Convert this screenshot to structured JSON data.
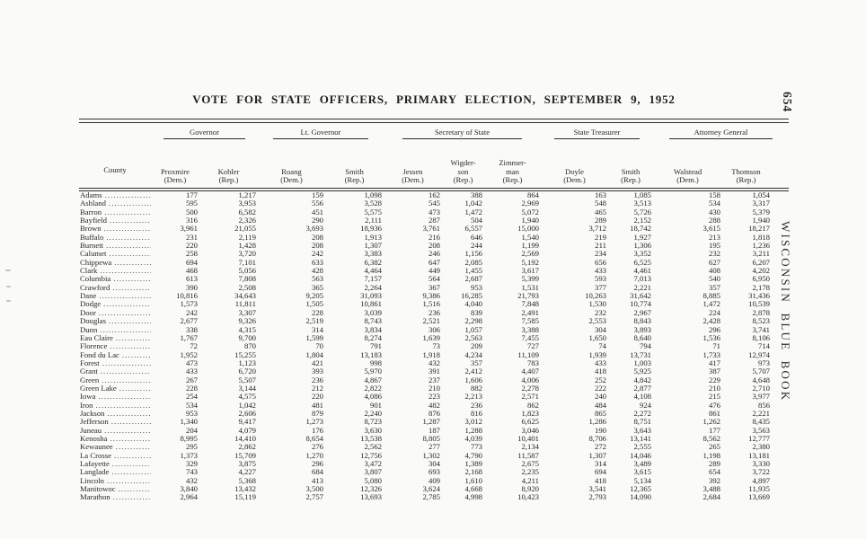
{
  "page": {
    "title": "VOTE FOR STATE OFFICERS, PRIMARY ELECTION, SEPTEMBER 9, 1952",
    "page_number": "654",
    "side_text": "WISCONSIN BLUE BOOK"
  },
  "table": {
    "county_header": "County",
    "groups": [
      {
        "label": "Governor",
        "span": 2
      },
      {
        "label": "Lt. Governor",
        "span": 2
      },
      {
        "label": "Secretary of State",
        "span": 3
      },
      {
        "label": "State Treasurer",
        "span": 2
      },
      {
        "label": "Attorney General",
        "span": 2
      }
    ],
    "columns": [
      {
        "name_lines": [
          "Proxmire"
        ],
        "party": "(Dem.)"
      },
      {
        "name_lines": [
          "Kohler"
        ],
        "party": "(Rep.)"
      },
      {
        "name_lines": [
          "Roang"
        ],
        "party": "(Dem.)"
      },
      {
        "name_lines": [
          "Smith"
        ],
        "party": "(Rep.)"
      },
      {
        "name_lines": [
          "Jessen"
        ],
        "party": "(Dem.)"
      },
      {
        "name_lines": [
          "Wigder-",
          "son"
        ],
        "party": "(Rep.)"
      },
      {
        "name_lines": [
          "Zimmer-",
          "man"
        ],
        "party": "(Rep.)"
      },
      {
        "name_lines": [
          "Doyle"
        ],
        "party": "(Dem.)"
      },
      {
        "name_lines": [
          "Smith"
        ],
        "party": "(Rep.)"
      },
      {
        "name_lines": [
          "Walstead"
        ],
        "party": "(Dem.)"
      },
      {
        "name_lines": [
          "Thomson"
        ],
        "party": "(Rep.)"
      }
    ],
    "rows": [
      {
        "county": "Adams",
        "values": [
          "177",
          "1,217",
          "159",
          "1,098",
          "162",
          "388",
          "864",
          "163",
          "1,085",
          "158",
          "1,054"
        ]
      },
      {
        "county": "Ashland",
        "values": [
          "595",
          "3,953",
          "556",
          "3,528",
          "545",
          "1,042",
          "2,969",
          "548",
          "3,513",
          "534",
          "3,317"
        ]
      },
      {
        "county": "Barron",
        "values": [
          "500",
          "6,582",
          "451",
          "5,575",
          "473",
          "1,472",
          "5,072",
          "465",
          "5,726",
          "430",
          "5,379"
        ]
      },
      {
        "county": "Bayfield",
        "values": [
          "316",
          "2,326",
          "290",
          "2,111",
          "287",
          "504",
          "1,940",
          "289",
          "2,152",
          "288",
          "1,940"
        ]
      },
      {
        "county": "Brown",
        "values": [
          "3,961",
          "21,055",
          "3,693",
          "18,936",
          "3,761",
          "6,557",
          "15,000",
          "3,712",
          "18,742",
          "3,615",
          "18,217"
        ]
      },
      {
        "county": "Buffalo",
        "values": [
          "231",
          "2,119",
          "208",
          "1,913",
          "216",
          "646",
          "1,540",
          "219",
          "1,927",
          "213",
          "1,818"
        ]
      },
      {
        "county": "Burnett",
        "values": [
          "220",
          "1,428",
          "208",
          "1,307",
          "208",
          "244",
          "1,199",
          "211",
          "1,306",
          "195",
          "1,236"
        ]
      },
      {
        "county": "Calumet",
        "values": [
          "258",
          "3,720",
          "242",
          "3,383",
          "246",
          "1,156",
          "2,569",
          "234",
          "3,352",
          "232",
          "3,211"
        ]
      },
      {
        "county": "Chippewa",
        "values": [
          "694",
          "7,101",
          "633",
          "6,382",
          "647",
          "2,085",
          "5,192",
          "656",
          "6,525",
          "627",
          "6,207"
        ]
      },
      {
        "county": "Clark",
        "values": [
          "468",
          "5,056",
          "428",
          "4,464",
          "449",
          "1,455",
          "3,617",
          "433",
          "4,461",
          "408",
          "4,202"
        ]
      },
      {
        "county": "Columbia",
        "values": [
          "613",
          "7,808",
          "563",
          "7,157",
          "564",
          "2,687",
          "5,399",
          "593",
          "7,013",
          "540",
          "6,950"
        ]
      },
      {
        "county": "Crawford",
        "values": [
          "390",
          "2,508",
          "365",
          "2,264",
          "367",
          "953",
          "1,531",
          "377",
          "2,221",
          "357",
          "2,178"
        ]
      },
      {
        "county": "Dane",
        "values": [
          "10,816",
          "34,643",
          "9,205",
          "31,093",
          "9,386",
          "16,285",
          "21,793",
          "10,263",
          "31,642",
          "8,885",
          "31,436"
        ]
      },
      {
        "county": "Dodge",
        "values": [
          "1,573",
          "11,811",
          "1,505",
          "10,861",
          "1,516",
          "4,040",
          "7,848",
          "1,530",
          "10,774",
          "1,472",
          "10,539"
        ]
      },
      {
        "county": "Door",
        "values": [
          "242",
          "3,307",
          "228",
          "3,039",
          "236",
          "839",
          "2,491",
          "232",
          "2,967",
          "224",
          "2,878"
        ]
      },
      {
        "county": "Douglas",
        "values": [
          "2,677",
          "9,326",
          "2,519",
          "8,743",
          "2,521",
          "2,298",
          "7,585",
          "2,553",
          "8,843",
          "2,428",
          "8,523"
        ]
      },
      {
        "county": "Dunn",
        "values": [
          "338",
          "4,315",
          "314",
          "3,834",
          "306",
          "1,057",
          "3,388",
          "304",
          "3,893",
          "296",
          "3,741"
        ]
      },
      {
        "county": "Eau Claire",
        "values": [
          "1,767",
          "9,700",
          "1,599",
          "8,274",
          "1,639",
          "2,563",
          "7,455",
          "1,650",
          "8,640",
          "1,536",
          "8,106"
        ]
      },
      {
        "county": "Florence",
        "values": [
          "72",
          "870",
          "70",
          "791",
          "73",
          "209",
          "727",
          "74",
          "794",
          "71",
          "714"
        ]
      },
      {
        "county": "Fond du Lac",
        "values": [
          "1,952",
          "15,255",
          "1,804",
          "13,183",
          "1,918",
          "4,234",
          "11,109",
          "1,939",
          "13,731",
          "1,733",
          "12,974"
        ]
      },
      {
        "county": "Forest",
        "values": [
          "473",
          "1,123",
          "421",
          "998",
          "432",
          "357",
          "783",
          "433",
          "1,003",
          "417",
          "973"
        ]
      },
      {
        "county": "Grant",
        "values": [
          "433",
          "6,720",
          "393",
          "5,970",
          "391",
          "2,412",
          "4,407",
          "418",
          "5,925",
          "387",
          "5,707"
        ]
      },
      {
        "county": "Green",
        "values": [
          "267",
          "5,507",
          "236",
          "4,867",
          "237",
          "1,606",
          "4,006",
          "252",
          "4,842",
          "229",
          "4,648"
        ]
      },
      {
        "county": "Green Lake",
        "values": [
          "228",
          "3,144",
          "212",
          "2,822",
          "210",
          "882",
          "2,278",
          "222",
          "2,877",
          "210",
          "2,710"
        ]
      },
      {
        "county": "Iowa",
        "values": [
          "254",
          "4,575",
          "220",
          "4,086",
          "223",
          "2,213",
          "2,571",
          "240",
          "4,108",
          "215",
          "3,977"
        ]
      },
      {
        "county": "Iron",
        "values": [
          "534",
          "1,042",
          "481",
          "901",
          "482",
          "236",
          "862",
          "484",
          "924",
          "476",
          "856"
        ]
      },
      {
        "county": "Jackson",
        "values": [
          "953",
          "2,606",
          "879",
          "2,240",
          "876",
          "816",
          "1,823",
          "865",
          "2,272",
          "861",
          "2,221"
        ]
      },
      {
        "county": "Jefferson",
        "values": [
          "1,340",
          "9,417",
          "1,273",
          "8,723",
          "1,287",
          "3,012",
          "6,625",
          "1,286",
          "8,751",
          "1,262",
          "8,435"
        ]
      },
      {
        "county": "Juneau",
        "values": [
          "204",
          "4,079",
          "176",
          "3,630",
          "187",
          "1,288",
          "3,046",
          "190",
          "3,643",
          "177",
          "3,563"
        ]
      },
      {
        "county": "Kenosha",
        "values": [
          "8,995",
          "14,410",
          "8,654",
          "13,538",
          "8,805",
          "4,039",
          "10,401",
          "8,706",
          "13,141",
          "8,562",
          "12,777"
        ]
      },
      {
        "county": "Kewaunee",
        "values": [
          "295",
          "2,862",
          "276",
          "2,562",
          "277",
          "773",
          "2,134",
          "272",
          "2,555",
          "265",
          "2,380"
        ]
      },
      {
        "county": "La Crosse",
        "values": [
          "1,373",
          "15,709",
          "1,270",
          "12,756",
          "1,302",
          "4,790",
          "11,587",
          "1,307",
          "14,046",
          "1,198",
          "13,181"
        ]
      },
      {
        "county": "Lafayette",
        "values": [
          "329",
          "3,875",
          "296",
          "3,472",
          "304",
          "1,389",
          "2,675",
          "314",
          "3,489",
          "289",
          "3,330"
        ]
      },
      {
        "county": "Langlade",
        "values": [
          "743",
          "4,227",
          "684",
          "3,807",
          "693",
          "2,168",
          "2,235",
          "694",
          "3,615",
          "654",
          "3,722"
        ]
      },
      {
        "county": "Lincoln",
        "values": [
          "432",
          "5,368",
          "413",
          "5,080",
          "409",
          "1,610",
          "4,211",
          "418",
          "5,134",
          "392",
          "4,897"
        ]
      },
      {
        "county": "Manitowoc",
        "values": [
          "3,840",
          "13,432",
          "3,500",
          "12,326",
          "3,624",
          "4,668",
          "8,920",
          "3,541",
          "12,365",
          "3,488",
          "11,935"
        ]
      },
      {
        "county": "Marathon",
        "values": [
          "2,964",
          "15,119",
          "2,757",
          "13,693",
          "2,785",
          "4,998",
          "10,423",
          "2,793",
          "14,090",
          "2,684",
          "13,669"
        ]
      }
    ]
  }
}
